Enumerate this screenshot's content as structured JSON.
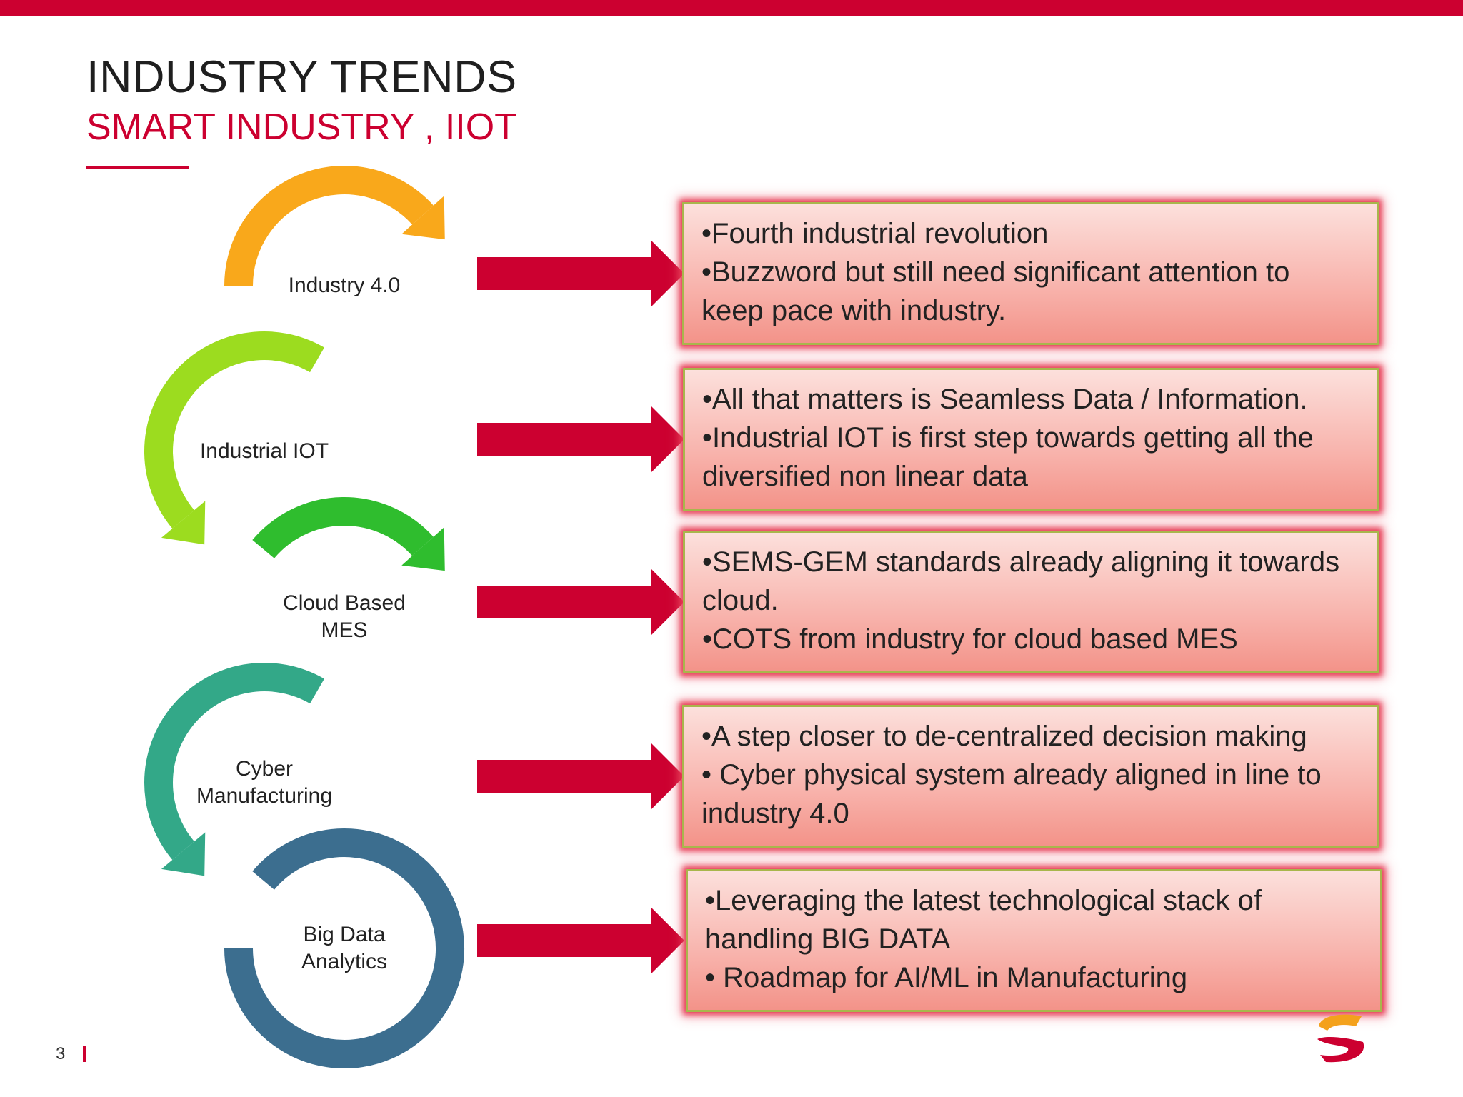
{
  "header": {
    "title": "INDUSTRY TRENDS",
    "subtitle": "SMART INDUSTRY , IIOT"
  },
  "colors": {
    "accent": "#cc0030",
    "box_border": "#a8b64c",
    "box_glow": "#e73c55"
  },
  "stages": [
    {
      "id": "industry-4-0",
      "label": [
        "Industry 4.0"
      ],
      "color": "#f9a81b",
      "bullets": [
        "•Fourth industrial revolution",
        "•Buzzword but still need significant attention to",
        "keep pace with industry."
      ]
    },
    {
      "id": "industrial-iot",
      "label": [
        "Industrial IOT"
      ],
      "color": "#9cdc1f",
      "bullets": [
        "•All that matters is Seamless Data / Information.",
        "•Industrial IOT is first step towards getting all the",
        "diversified non linear data"
      ]
    },
    {
      "id": "cloud-based-mes",
      "label": [
        "Cloud Based",
        "MES"
      ],
      "color": "#2fbd2e",
      "bullets": [
        "•SEMS-GEM standards already aligning it towards",
        "cloud.",
        "•COTS from industry for cloud based MES"
      ]
    },
    {
      "id": "cyber-manufacturing",
      "label": [
        "Cyber",
        "Manufacturing"
      ],
      "color": "#33a888",
      "bullets": [
        "•A step closer to de-centralized decision making",
        "• Cyber physical system already aligned in line to",
        "industry 4.0"
      ]
    },
    {
      "id": "big-data-analytics",
      "label": [
        "Big Data",
        "Analytics"
      ],
      "color": "#3c6e8f",
      "bullets": [
        "•Leveraging the latest technological stack of",
        "handling BIG DATA",
        "• Roadmap for AI/ML in Manufacturing"
      ]
    }
  ],
  "footer": {
    "page_number": "3"
  }
}
